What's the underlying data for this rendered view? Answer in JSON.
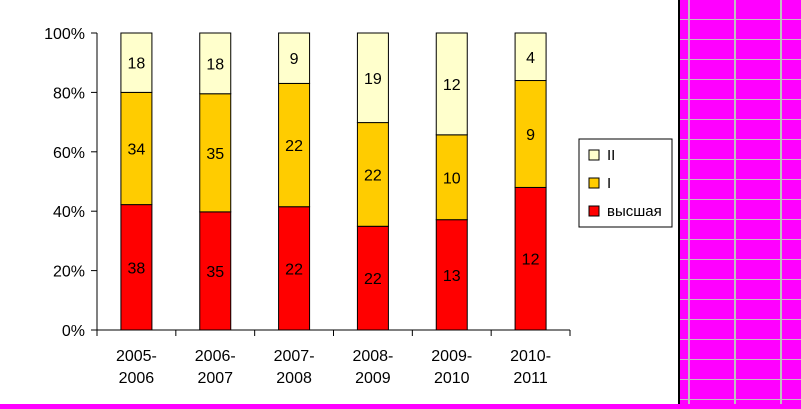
{
  "chart_data": {
    "type": "bar",
    "stacked": true,
    "normalized": true,
    "categories": [
      [
        "2005-",
        "2006"
      ],
      [
        "2006-",
        "2007"
      ],
      [
        "2007-",
        "2008"
      ],
      [
        "2008-",
        "2009"
      ],
      [
        "2009-",
        "2010"
      ],
      [
        "2010-",
        "2011"
      ]
    ],
    "series": [
      {
        "name": "высшая",
        "color": "#ff0000",
        "values": [
          38,
          35,
          22,
          22,
          13,
          12
        ]
      },
      {
        "name": "I",
        "color": "#ffcc00",
        "values": [
          34,
          35,
          22,
          22,
          10,
          9
        ]
      },
      {
        "name": "II",
        "color": "#ffffcc",
        "values": [
          18,
          18,
          9,
          19,
          12,
          4
        ]
      }
    ],
    "y_ticks": [
      "0%",
      "20%",
      "40%",
      "60%",
      "80%",
      "100%"
    ],
    "ylim": [
      0,
      100
    ],
    "grid": false,
    "legend_position": "right",
    "legend_order": [
      "II",
      "I",
      "высшая"
    ]
  },
  "colors": {
    "background": "#ff00ff",
    "plot_background": "#ffffff"
  }
}
